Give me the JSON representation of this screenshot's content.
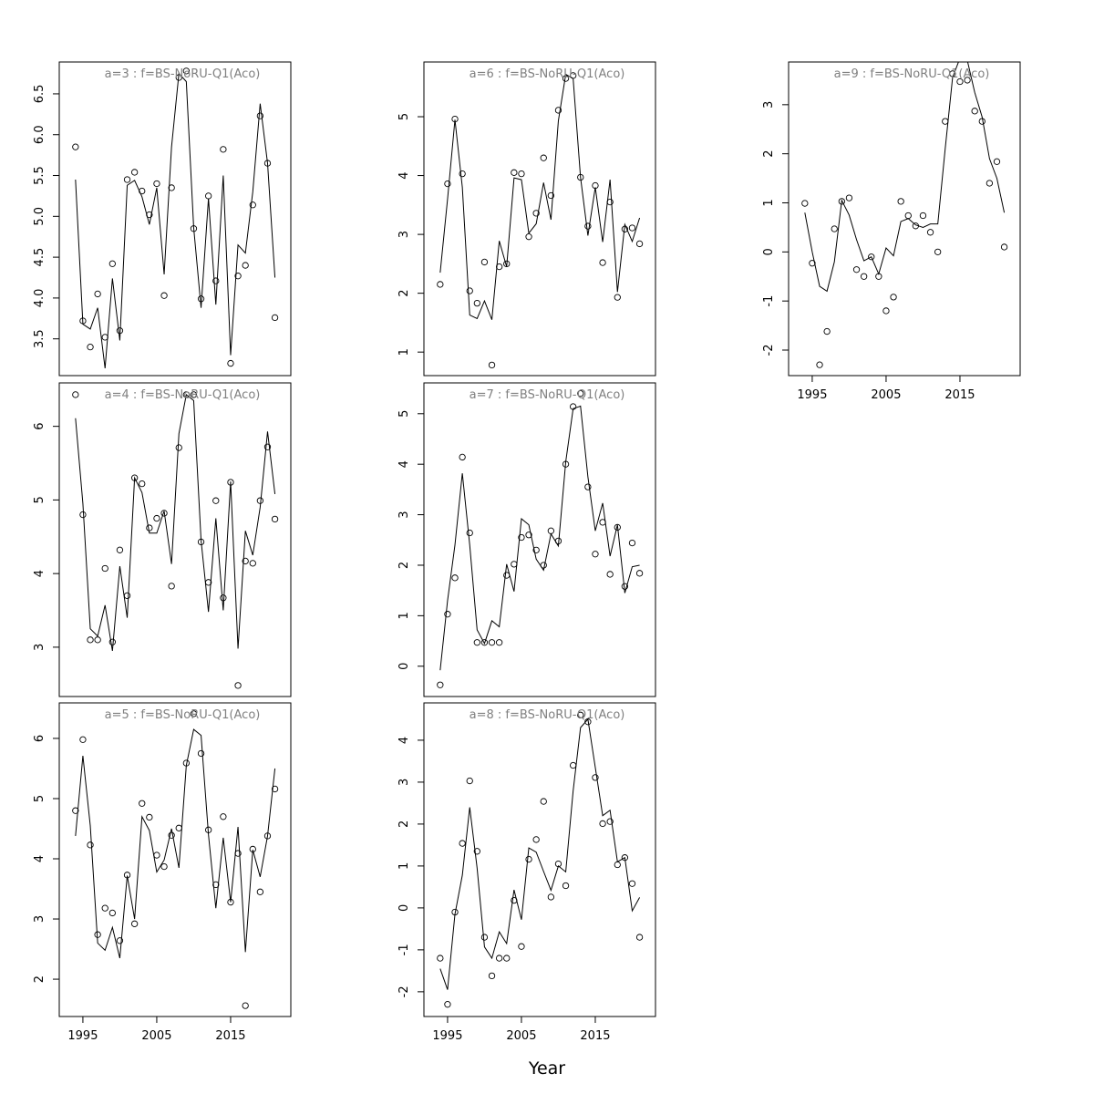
{
  "xlabel": "Year",
  "chart_data": [
    {
      "type": "line",
      "title": "a=3  :  f=BS-NoRU-Q1(Aco)",
      "x": [
        1994,
        1995,
        1996,
        1997,
        1998,
        1999,
        2000,
        2001,
        2002,
        2003,
        2004,
        2005,
        2006,
        2007,
        2008,
        2009,
        2010,
        2011,
        2012,
        2013,
        2014,
        2015,
        2016,
        2017,
        2018,
        2019,
        2020,
        2021
      ],
      "series": [
        {
          "marker": "circle",
          "color": "#000000",
          "values": [
            5.85,
            3.72,
            3.4,
            4.05,
            3.52,
            4.42,
            3.6,
            5.45,
            5.54,
            5.31,
            5.02,
            5.4,
            4.03,
            5.35,
            6.7,
            6.78,
            4.85,
            3.99,
            5.25,
            4.21,
            5.82,
            3.2,
            4.27,
            4.4,
            5.14,
            6.23,
            5.65,
            3.76
          ]
        },
        {
          "marker": "line",
          "color": "#000000",
          "values": [
            5.45,
            3.68,
            3.62,
            3.88,
            3.14,
            4.24,
            3.48,
            5.38,
            5.44,
            5.24,
            4.9,
            5.35,
            4.29,
            5.85,
            6.75,
            6.65,
            4.86,
            3.88,
            5.22,
            3.92,
            5.5,
            3.3,
            4.65,
            4.55,
            5.3,
            6.38,
            5.65,
            4.25
          ]
        }
      ],
      "xlim": [
        1991.8,
        2023.15
      ],
      "ylim": [
        3.05,
        6.89
      ],
      "yticks": [
        3.5,
        {
          "value": 4,
          "label": "4.0"
        },
        4.5,
        {
          "value": 5,
          "label": "5.0"
        },
        5.5,
        {
          "value": 6,
          "label": "6.0"
        },
        6.5
      ]
    },
    {
      "type": "line",
      "title": "a=4  :  f=BS-NoRU-Q1(Aco)",
      "x": [
        1994,
        1995,
        1996,
        1997,
        1998,
        1999,
        2000,
        2001,
        2002,
        2003,
        2004,
        2005,
        2006,
        2007,
        2008,
        2009,
        2010,
        2011,
        2012,
        2013,
        2014,
        2015,
        2016,
        2017,
        2018,
        2019,
        2020,
        2021
      ],
      "series": [
        {
          "marker": "circle",
          "color": "#000000",
          "values": [
            6.43,
            4.8,
            3.1,
            3.1,
            4.07,
            3.07,
            4.32,
            3.7,
            5.3,
            5.22,
            4.62,
            4.75,
            4.82,
            3.83,
            5.71,
            6.43,
            6.43,
            4.43,
            3.88,
            4.99,
            3.67,
            5.24,
            2.48,
            4.17,
            4.14,
            4.99,
            5.72,
            4.74
          ]
        },
        {
          "marker": "line",
          "color": "#000000",
          "values": [
            6.11,
            4.95,
            3.25,
            3.15,
            3.57,
            2.95,
            4.1,
            3.4,
            5.3,
            5.1,
            4.55,
            4.55,
            4.85,
            4.13,
            5.9,
            6.43,
            6.35,
            4.45,
            3.48,
            4.75,
            3.5,
            5.25,
            2.98,
            4.58,
            4.25,
            4.9,
            5.93,
            5.08
          ]
        }
      ],
      "xlim": [
        1991.8,
        2023.15
      ],
      "ylim": [
        2.33,
        6.59
      ],
      "yticks": [
        3,
        4,
        5,
        6
      ]
    },
    {
      "type": "line",
      "title": "a=5  :  f=BS-NoRU-Q1(Aco)",
      "x": [
        1994,
        1995,
        1996,
        1997,
        1998,
        1999,
        2000,
        2001,
        2002,
        2003,
        2004,
        2005,
        2006,
        2007,
        2008,
        2009,
        2010,
        2011,
        2012,
        2013,
        2014,
        2015,
        2016,
        2017,
        2018,
        2019,
        2020,
        2021
      ],
      "series": [
        {
          "marker": "circle",
          "color": "#000000",
          "values": [
            4.8,
            5.98,
            4.23,
            2.74,
            3.18,
            3.1,
            2.64,
            3.73,
            2.92,
            4.92,
            4.69,
            4.06,
            3.87,
            4.39,
            4.51,
            5.59,
            6.41,
            5.75,
            4.48,
            3.57,
            4.7,
            3.28,
            4.09,
            1.56,
            4.16,
            3.45,
            4.38,
            5.16
          ]
        },
        {
          "marker": "line",
          "color": "#000000",
          "values": [
            4.38,
            5.71,
            4.55,
            2.6,
            2.48,
            2.86,
            2.35,
            3.72,
            3.0,
            4.7,
            4.47,
            3.78,
            3.98,
            4.5,
            3.85,
            5.55,
            6.15,
            6.05,
            4.4,
            3.18,
            4.35,
            3.28,
            4.53,
            2.45,
            4.15,
            3.7,
            4.38,
            5.5
          ]
        }
      ],
      "xlim": [
        1991.8,
        2023.15
      ],
      "ylim": [
        1.38,
        6.59
      ],
      "yticks": [
        2,
        3,
        4,
        5,
        6
      ],
      "xticks": [
        1995,
        2005,
        2015
      ]
    },
    {
      "type": "line",
      "title": "a=6  :  f=BS-NoRU-Q1(Aco)",
      "x": [
        1994,
        1995,
        1996,
        1997,
        1998,
        1999,
        2000,
        2001,
        2002,
        2003,
        2004,
        2005,
        2006,
        2007,
        2008,
        2009,
        2010,
        2011,
        2012,
        2013,
        2014,
        2015,
        2016,
        2017,
        2018,
        2019,
        2020,
        2021
      ],
      "series": [
        {
          "marker": "circle",
          "color": "#000000",
          "values": [
            2.15,
            3.86,
            4.96,
            4.03,
            2.04,
            1.83,
            2.53,
            0.78,
            2.45,
            2.5,
            4.05,
            4.03,
            2.96,
            3.36,
            4.3,
            3.66,
            5.11,
            5.65,
            5.7,
            3.97,
            3.14,
            3.83,
            2.52,
            3.55,
            1.93,
            3.09,
            3.11,
            2.84
          ]
        },
        {
          "marker": "line",
          "color": "#000000",
          "values": [
            2.35,
            3.6,
            4.95,
            3.8,
            1.63,
            1.57,
            1.87,
            1.55,
            2.89,
            2.45,
            3.96,
            3.93,
            3.02,
            3.18,
            3.88,
            3.25,
            4.93,
            5.72,
            5.65,
            3.97,
            2.98,
            3.8,
            2.87,
            3.93,
            2.02,
            3.17,
            2.88,
            3.28
          ]
        }
      ],
      "xlim": [
        1991.8,
        2023.15
      ],
      "ylim": [
        0.6,
        5.93
      ],
      "yticks": [
        1,
        2,
        3,
        4,
        5
      ]
    },
    {
      "type": "line",
      "title": "a=7  :  f=BS-NoRU-Q1(Aco)",
      "x": [
        1994,
        1995,
        1996,
        1997,
        1998,
        1999,
        2000,
        2001,
        2002,
        2003,
        2004,
        2005,
        2006,
        2007,
        2008,
        2009,
        2010,
        2011,
        2012,
        2013,
        2014,
        2015,
        2016,
        2017,
        2018,
        2019,
        2020,
        2021
      ],
      "series": [
        {
          "marker": "circle",
          "color": "#000000",
          "values": [
            -0.37,
            1.03,
            1.75,
            4.14,
            2.64,
            0.47,
            0.47,
            0.47,
            0.47,
            1.8,
            2.02,
            2.55,
            2.6,
            2.3,
            2.0,
            2.68,
            2.48,
            4.0,
            5.14,
            5.4,
            3.55,
            2.22,
            2.85,
            1.82,
            2.75,
            1.58,
            2.44,
            1.84
          ]
        },
        {
          "marker": "line",
          "color": "#000000",
          "values": [
            -0.08,
            1.3,
            2.4,
            3.82,
            2.4,
            0.72,
            0.45,
            0.9,
            0.78,
            2.02,
            1.48,
            2.92,
            2.8,
            2.12,
            1.9,
            2.62,
            2.38,
            4.05,
            5.1,
            5.15,
            3.75,
            2.68,
            3.23,
            2.18,
            2.8,
            1.45,
            1.97,
            2.0
          ]
        }
      ],
      "xlim": [
        1991.8,
        2023.15
      ],
      "ylim": [
        -0.6,
        5.61
      ],
      "yticks": [
        0,
        1,
        2,
        3,
        4,
        5
      ]
    },
    {
      "type": "line",
      "title": "a=8  :  f=BS-NoRU-Q1(Aco)",
      "x": [
        1994,
        1995,
        1996,
        1997,
        1998,
        1999,
        2000,
        2001,
        2002,
        2003,
        2004,
        2005,
        2006,
        2007,
        2008,
        2009,
        2010,
        2011,
        2012,
        2013,
        2014,
        2015,
        2016,
        2017,
        2018,
        2019,
        2020,
        2021
      ],
      "series": [
        {
          "marker": "circle",
          "color": "#000000",
          "values": [
            -1.2,
            -2.3,
            -0.1,
            1.54,
            3.03,
            1.35,
            -0.7,
            -1.62,
            -1.2,
            -1.2,
            0.18,
            -0.92,
            1.16,
            1.63,
            2.54,
            0.26,
            1.05,
            0.53,
            3.4,
            4.6,
            4.44,
            3.11,
            2.01,
            2.06,
            1.03,
            1.2,
            0.58,
            -0.7
          ]
        },
        {
          "marker": "line",
          "color": "#000000",
          "values": [
            -1.45,
            -1.95,
            -0.15,
            0.78,
            2.4,
            0.95,
            -0.93,
            -1.2,
            -0.57,
            -0.85,
            0.43,
            -0.28,
            1.43,
            1.33,
            0.87,
            0.42,
            1.0,
            0.86,
            2.79,
            4.3,
            4.5,
            3.35,
            2.2,
            2.33,
            1.1,
            1.2,
            -0.07,
            0.25
          ]
        }
      ],
      "xlim": [
        1991.8,
        2023.15
      ],
      "ylim": [
        -2.59,
        4.89
      ],
      "yticks": [
        -2,
        -1,
        0,
        1,
        2,
        3,
        4
      ],
      "xticks": [
        1995,
        2005,
        2015
      ]
    },
    {
      "type": "line",
      "title": "a=9  :  f=BS-NoRU-Q1(Aco)",
      "x": [
        1994,
        1995,
        1996,
        1997,
        1998,
        1999,
        2000,
        2001,
        2002,
        2003,
        2004,
        2005,
        2006,
        2007,
        2008,
        2009,
        2010,
        2011,
        2012,
        2013,
        2014,
        2015,
        2016,
        2017,
        2018,
        2019,
        2020,
        2021
      ],
      "series": [
        {
          "marker": "circle",
          "color": "#000000",
          "values": [
            0.99,
            -0.23,
            -2.3,
            -1.62,
            0.47,
            1.03,
            1.1,
            -0.36,
            -0.5,
            -0.1,
            -0.5,
            -1.2,
            -0.92,
            1.03,
            0.74,
            0.53,
            0.74,
            0.4,
            0.0,
            2.66,
            3.63,
            3.47,
            3.5,
            2.87,
            2.66,
            1.4,
            1.84,
            0.1
          ]
        },
        {
          "marker": "line",
          "color": "#000000",
          "values": [
            0.8,
            0.0,
            -0.7,
            -0.8,
            -0.2,
            1.05,
            0.75,
            0.25,
            -0.18,
            -0.1,
            -0.45,
            0.08,
            -0.08,
            0.62,
            0.68,
            0.55,
            0.5,
            0.57,
            0.57,
            2.1,
            3.55,
            3.95,
            3.9,
            3.25,
            2.75,
            1.9,
            1.5,
            0.8
          ]
        }
      ],
      "xlim": [
        1991.8,
        2023.15
      ],
      "ylim": [
        -2.52,
        3.87
      ],
      "yticks": [
        -2,
        -1,
        0,
        1,
        2,
        3
      ],
      "xticks": [
        1995,
        2005,
        2015
      ]
    }
  ]
}
